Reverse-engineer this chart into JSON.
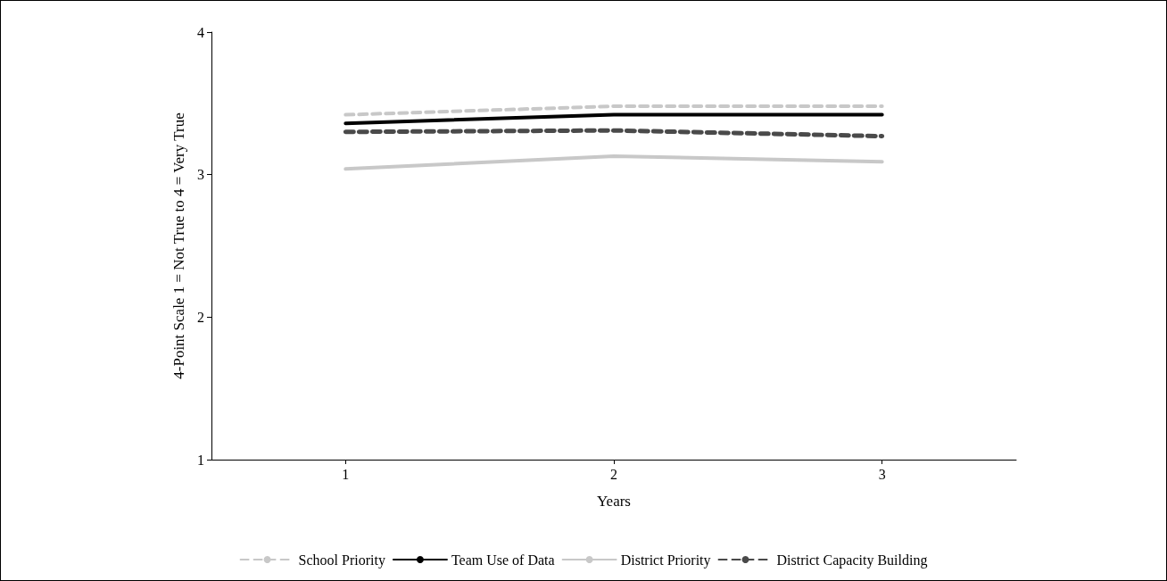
{
  "chart_data": {
    "type": "line",
    "xlabel": "Years",
    "ylabel": "4-Point Scale 1 = Not True to 4 = Very True",
    "categories": [
      "1",
      "2",
      "3"
    ],
    "series": [
      {
        "name": "School Priority",
        "color": "#c8c8c8",
        "line_style": "dashed",
        "values": [
          3.42,
          3.48,
          3.48
        ]
      },
      {
        "name": "Team Use of Data",
        "color": "#000000",
        "line_style": "solid",
        "values": [
          3.36,
          3.42,
          3.42
        ]
      },
      {
        "name": "District Priority",
        "color": "#c8c8c8",
        "line_style": "solid",
        "values": [
          3.04,
          3.13,
          3.09
        ]
      },
      {
        "name": "District Capacity Building",
        "color": "#4a4a4a",
        "line_style": "dashed",
        "values": [
          3.3,
          3.31,
          3.27
        ]
      }
    ],
    "ylim": [
      1,
      4
    ],
    "yticks": [
      1,
      2,
      3,
      4
    ],
    "grid": false,
    "legend": "bottom",
    "marker": "none"
  }
}
